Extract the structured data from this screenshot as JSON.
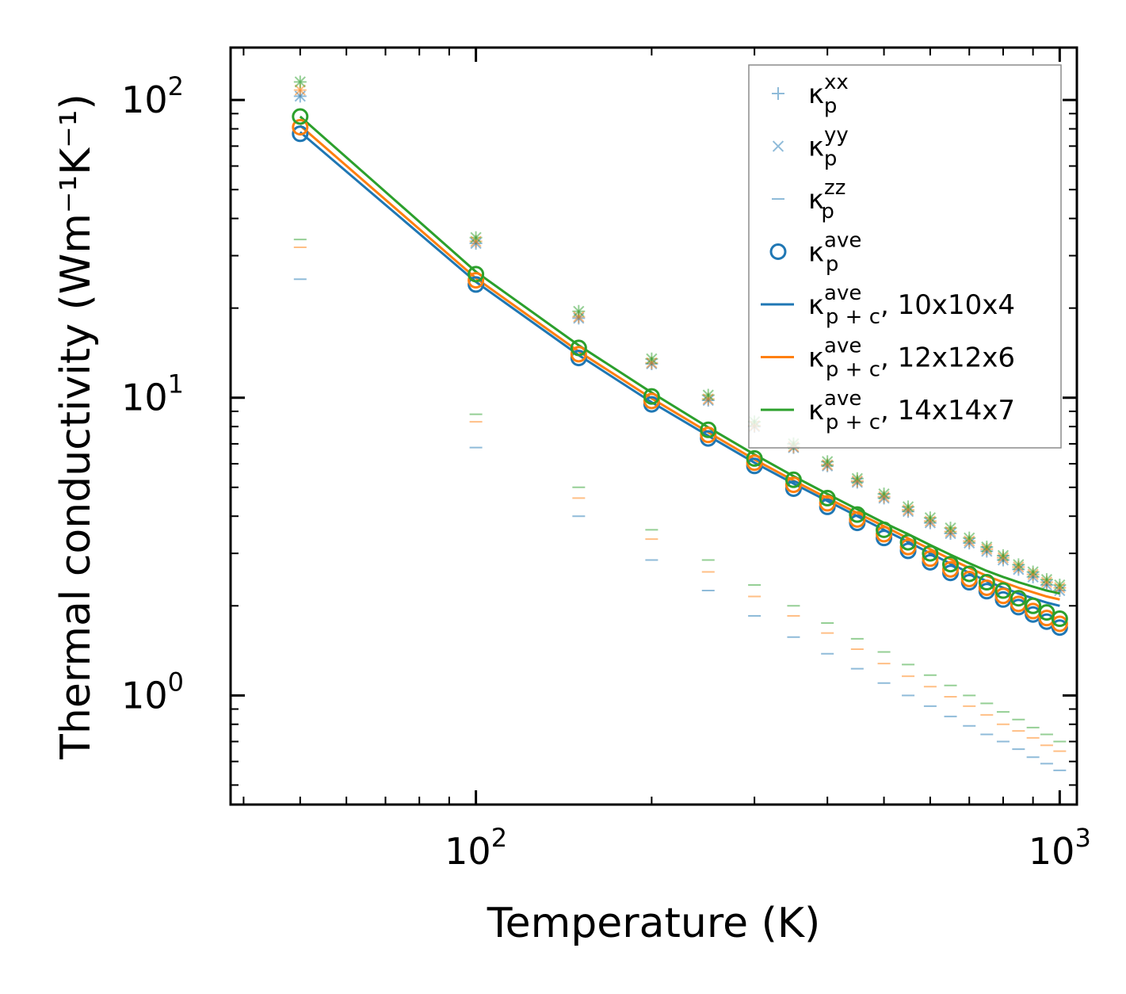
{
  "chart_data": {
    "type": "scatter",
    "xscale": "log",
    "yscale": "log",
    "xlabel": "Temperature (K)",
    "ylabel": "Thermal conductivity (Wm⁻¹K⁻¹)",
    "xlim": [
      38,
      1070
    ],
    "ylim": [
      0.43,
      150
    ],
    "xticks": [
      {
        "value": 100,
        "label": "10",
        "exp": "2"
      },
      {
        "value": 1000,
        "label": "10",
        "exp": "3"
      }
    ],
    "yticks": [
      {
        "value": 1,
        "label": "10",
        "exp": "0"
      },
      {
        "value": 10,
        "label": "10",
        "exp": "1"
      },
      {
        "value": 100,
        "label": "10",
        "exp": "2"
      }
    ],
    "x": [
      50,
      100,
      150,
      200,
      250,
      300,
      350,
      400,
      450,
      500,
      550,
      600,
      650,
      700,
      750,
      800,
      850,
      900,
      950,
      1000
    ],
    "colors": {
      "blue": "#1f77b4",
      "orange": "#ff7f0e",
      "green": "#2ca02c"
    },
    "series": [
      {
        "name": "κ_p^xx 10x10x4",
        "marker": "plus",
        "color": "#1f77b4",
        "values": [
          103,
          33,
          18.5,
          13,
          9.8,
          8.0,
          6.8,
          5.9,
          5.2,
          4.6,
          4.15,
          3.8,
          3.5,
          3.25,
          3.05,
          2.85,
          2.65,
          2.5,
          2.35,
          2.25
        ]
      },
      {
        "name": "κ_p^yy 10x10x4",
        "marker": "x",
        "color": "#1f77b4",
        "values": [
          103,
          33,
          18.5,
          13,
          9.8,
          8.0,
          6.8,
          5.9,
          5.2,
          4.6,
          4.15,
          3.8,
          3.5,
          3.25,
          3.05,
          2.85,
          2.65,
          2.5,
          2.35,
          2.25
        ]
      },
      {
        "name": "κ_p^zz 10x10x4",
        "marker": "hline",
        "color": "#1f77b4",
        "values": [
          25,
          6.8,
          4.0,
          2.85,
          2.25,
          1.85,
          1.57,
          1.38,
          1.23,
          1.1,
          1.0,
          0.92,
          0.85,
          0.79,
          0.74,
          0.7,
          0.66,
          0.62,
          0.59,
          0.56
        ]
      },
      {
        "name": "κ_p^ave 10x10x4",
        "marker": "circle",
        "color": "#1f77b4",
        "values": [
          77,
          24,
          13.6,
          9.5,
          7.3,
          5.9,
          4.95,
          4.3,
          3.8,
          3.38,
          3.06,
          2.8,
          2.58,
          2.4,
          2.24,
          2.1,
          1.98,
          1.87,
          1.77,
          1.69
        ]
      },
      {
        "name": "κ_p^xx 12x12x6",
        "marker": "plus",
        "color": "#ff7f0e",
        "values": [
          108,
          33.5,
          18.7,
          13.1,
          9.9,
          8.05,
          6.85,
          5.95,
          5.25,
          4.65,
          4.2,
          3.85,
          3.55,
          3.3,
          3.1,
          2.9,
          2.7,
          2.55,
          2.4,
          2.3
        ]
      },
      {
        "name": "κ_p^yy 12x12x6",
        "marker": "x",
        "color": "#ff7f0e",
        "values": [
          108,
          33.5,
          18.7,
          13.1,
          9.9,
          8.05,
          6.85,
          5.95,
          5.25,
          4.65,
          4.2,
          3.85,
          3.55,
          3.3,
          3.1,
          2.9,
          2.7,
          2.55,
          2.4,
          2.3
        ]
      },
      {
        "name": "κ_p^zz 12x12x6",
        "marker": "hline",
        "color": "#ff7f0e",
        "values": [
          32,
          8.3,
          4.6,
          3.35,
          2.6,
          2.15,
          1.85,
          1.62,
          1.43,
          1.28,
          1.16,
          1.07,
          0.99,
          0.92,
          0.86,
          0.8,
          0.76,
          0.72,
          0.68,
          0.65
        ]
      },
      {
        "name": "κ_p^ave 12x12x6",
        "marker": "circle",
        "color": "#ff7f0e",
        "values": [
          81,
          24.8,
          14.0,
          9.75,
          7.5,
          6.05,
          5.1,
          4.42,
          3.9,
          3.48,
          3.15,
          2.88,
          2.65,
          2.46,
          2.3,
          2.16,
          2.03,
          1.92,
          1.82,
          1.74
        ]
      },
      {
        "name": "κ_p^xx 14x14x7",
        "marker": "plus",
        "color": "#2ca02c",
        "values": [
          115,
          34.5,
          19.5,
          13.5,
          10.2,
          8.3,
          7.0,
          6.1,
          5.35,
          4.75,
          4.3,
          3.95,
          3.65,
          3.38,
          3.15,
          2.95,
          2.75,
          2.6,
          2.45,
          2.35
        ]
      },
      {
        "name": "κ_p^yy 14x14x7",
        "marker": "x",
        "color": "#2ca02c",
        "values": [
          115,
          34.5,
          19.5,
          13.5,
          10.2,
          8.3,
          7.0,
          6.1,
          5.35,
          4.75,
          4.3,
          3.95,
          3.65,
          3.38,
          3.15,
          2.95,
          2.75,
          2.6,
          2.45,
          2.35
        ]
      },
      {
        "name": "κ_p^zz 14x14x7",
        "marker": "hline",
        "color": "#2ca02c",
        "values": [
          34,
          8.8,
          5.0,
          3.6,
          2.85,
          2.35,
          2.0,
          1.75,
          1.55,
          1.4,
          1.27,
          1.17,
          1.08,
          1.0,
          0.94,
          0.88,
          0.83,
          0.78,
          0.74,
          0.7
        ]
      },
      {
        "name": "κ_p^ave 14x14x7",
        "marker": "circle",
        "color": "#2ca02c",
        "values": [
          88,
          26,
          14.7,
          10.1,
          7.8,
          6.25,
          5.3,
          4.6,
          4.05,
          3.6,
          3.27,
          3.0,
          2.76,
          2.56,
          2.4,
          2.25,
          2.12,
          2.0,
          1.9,
          1.81
        ]
      },
      {
        "name": "κ_p+c^ave 10x10x4",
        "marker": "line",
        "color": "#1f77b4",
        "values": [
          78,
          24.5,
          13.9,
          9.65,
          7.45,
          6.05,
          5.15,
          4.5,
          4.0,
          3.6,
          3.28,
          3.0,
          2.77,
          2.58,
          2.42,
          2.3,
          2.2,
          2.12,
          2.05,
          2.0
        ]
      },
      {
        "name": "κ_p+c^ave 12x12x6",
        "marker": "line",
        "color": "#ff7f0e",
        "values": [
          82,
          25.2,
          14.3,
          9.95,
          7.65,
          6.2,
          5.27,
          4.6,
          4.1,
          3.7,
          3.37,
          3.1,
          2.87,
          2.68,
          2.52,
          2.4,
          2.3,
          2.22,
          2.15,
          2.1
        ]
      },
      {
        "name": "κ_p+c^ave 14x14x7",
        "marker": "line",
        "color": "#2ca02c",
        "values": [
          88,
          26.5,
          15.0,
          10.4,
          7.95,
          6.45,
          5.45,
          4.75,
          4.22,
          3.8,
          3.48,
          3.2,
          2.97,
          2.78,
          2.62,
          2.5,
          2.4,
          2.32,
          2.25,
          2.2
        ]
      }
    ],
    "legend": {
      "position": "upper right",
      "entries": [
        {
          "marker": "plus",
          "color": "#1f77b4",
          "base": "κ",
          "sup": "xx",
          "sub": "p",
          "suffix": ""
        },
        {
          "marker": "x",
          "color": "#1f77b4",
          "base": "κ",
          "sup": "yy",
          "sub": "p",
          "suffix": ""
        },
        {
          "marker": "hline",
          "color": "#1f77b4",
          "base": "κ",
          "sup": "zz",
          "sub": "p",
          "suffix": ""
        },
        {
          "marker": "circle",
          "color": "#1f77b4",
          "base": "κ",
          "sup": "ave",
          "sub": "p",
          "suffix": ""
        },
        {
          "marker": "line",
          "color": "#1f77b4",
          "base": "κ",
          "sup": "ave",
          "sub": "p + c",
          "suffix": ", 10x10x4"
        },
        {
          "marker": "line",
          "color": "#ff7f0e",
          "base": "κ",
          "sup": "ave",
          "sub": "p + c",
          "suffix": ", 12x12x6"
        },
        {
          "marker": "line",
          "color": "#2ca02c",
          "base": "κ",
          "sup": "ave",
          "sub": "p + c",
          "suffix": ", 14x14x7"
        }
      ]
    }
  }
}
